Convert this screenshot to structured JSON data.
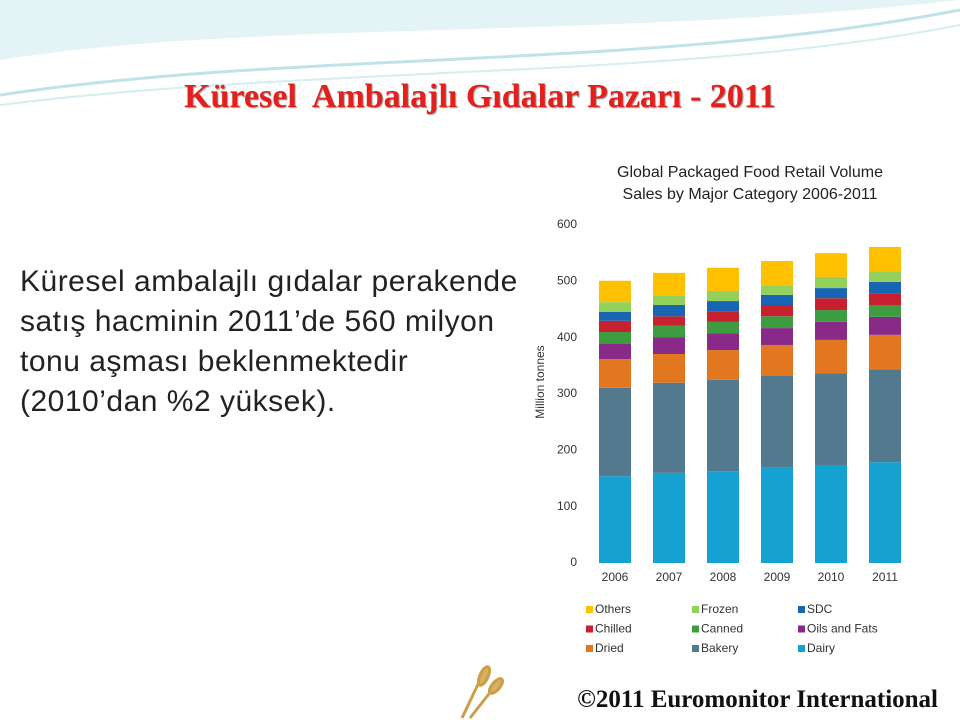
{
  "slide_title": "Küresel  Ambalajlı Gıdalar Pazarı - 2011",
  "body_text": "Küresel ambalajlı gıdalar perakende satış hacminin 2011’de 560 milyon tonu aşması beklenmektedir (2010’dan %2 yüksek).",
  "footer": "©2011 Euromonitor International",
  "chart_data": {
    "type": "stacked_bar",
    "title": "Global Packaged Food Retail Volume",
    "subtitle": "Sales by Major Category 2006-2011",
    "y_label": "Million tonnes",
    "categories": [
      "2006",
      "2007",
      "2008",
      "2009",
      "2010",
      "2011"
    ],
    "ylim": [
      0,
      600
    ],
    "yticks": [
      0,
      100,
      200,
      300,
      400,
      500,
      600
    ],
    "grid": false,
    "series": [
      {
        "name": "Dairy",
        "color": "#15a2d2",
        "values": [
          154,
          160,
          163,
          169,
          174,
          179
        ]
      },
      {
        "name": "Bakery",
        "color": "#52798d",
        "values": [
          157,
          160,
          162,
          163,
          163,
          165
        ]
      },
      {
        "name": "Dried",
        "color": "#e2771f",
        "values": [
          51,
          51,
          53,
          55,
          59,
          61
        ]
      },
      {
        "name": "Oils and Fats",
        "color": "#8a2a88",
        "values": [
          28,
          30,
          30,
          30,
          32,
          32
        ]
      },
      {
        "name": "Canned",
        "color": "#3c9c3f",
        "values": [
          20,
          20,
          20,
          21,
          21,
          21
        ]
      },
      {
        "name": "Chilled",
        "color": "#c8202e",
        "values": [
          20,
          17,
          19,
          20,
          21,
          21
        ]
      },
      {
        "name": "SDC",
        "color": "#1765b3",
        "values": [
          16,
          20,
          18,
          18,
          18,
          20
        ]
      },
      {
        "name": "Frozen",
        "color": "#94d15b",
        "values": [
          17,
          16,
          18,
          17,
          20,
          19
        ]
      },
      {
        "name": "Others",
        "color": "#ffc000",
        "values": [
          38,
          41,
          41,
          43,
          42,
          43
        ]
      }
    ]
  }
}
